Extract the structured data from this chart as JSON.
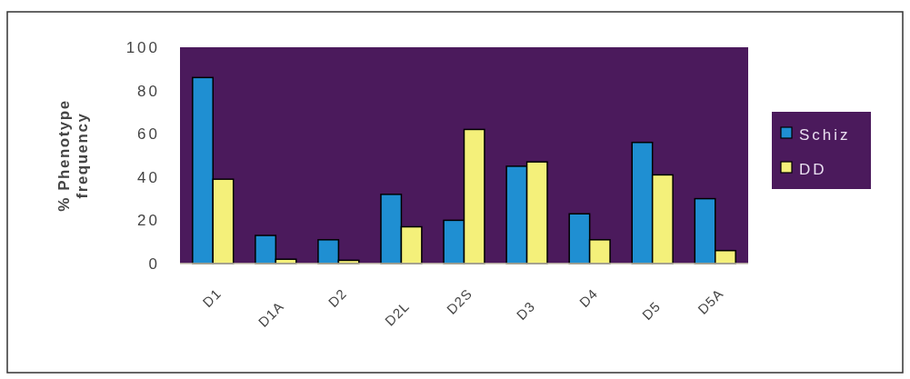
{
  "chart_data": {
    "type": "bar",
    "ylabel": "% Phenotype frequency",
    "categories": [
      "D1",
      "D1A",
      "D2",
      "D2L",
      "D2S",
      "D3",
      "D4",
      "D5",
      "D5A"
    ],
    "series": [
      {
        "name": "Schiz",
        "color": "#1f8fd2",
        "values": [
          86,
          13,
          11,
          32,
          20,
          45,
          23,
          56,
          30
        ]
      },
      {
        "name": "DD",
        "color": "#f4f07a",
        "values": [
          39,
          2,
          1.5,
          17,
          62,
          47,
          11,
          41,
          6
        ]
      }
    ],
    "ylim": [
      0,
      100
    ],
    "yticks": [
      0,
      20,
      40,
      60,
      80,
      100
    ],
    "grid": false,
    "legend": "right"
  }
}
